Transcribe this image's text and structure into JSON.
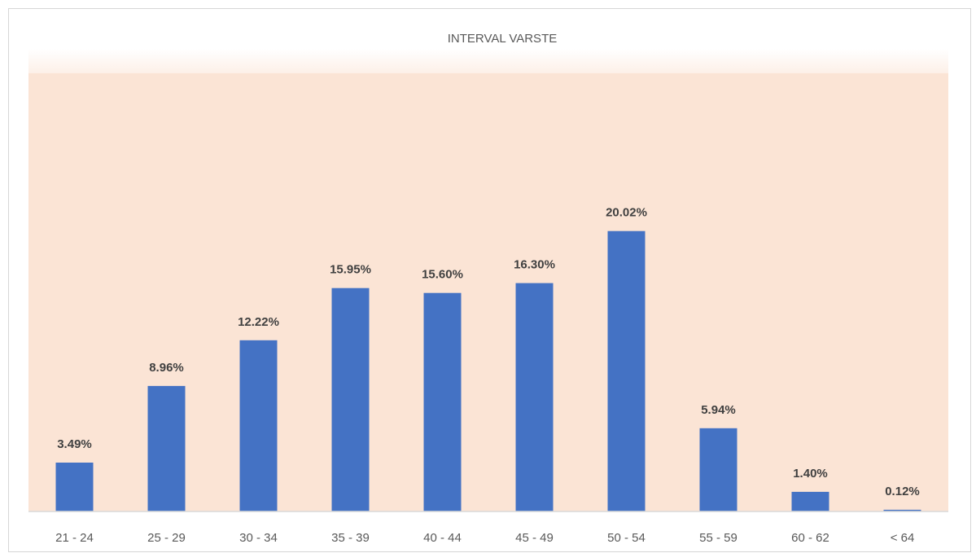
{
  "chart_data": {
    "type": "bar",
    "title": "INTERVAL VARSTE",
    "xlabel": "",
    "ylabel": "",
    "categories": [
      "21 - 24",
      "25 - 29",
      "30 - 34",
      "35 - 39",
      "40 - 44",
      "45 - 49",
      "50 - 54",
      "55 - 59",
      "60 - 62",
      "< 64"
    ],
    "values": [
      3.49,
      8.96,
      12.22,
      15.95,
      15.6,
      16.3,
      20.02,
      5.94,
      1.4,
      0.12
    ],
    "data_labels": [
      "3.49%",
      "8.96%",
      "12.22%",
      "15.95%",
      "15.60%",
      "16.30%",
      "20.02%",
      "5.94%",
      "1.40%",
      "0.12%"
    ],
    "unit": "%",
    "ylim": [
      0,
      25
    ],
    "grid": false,
    "legend": "none",
    "colors": {
      "bar": "#4472C4",
      "plot_background": "#FBE4D5",
      "axis_line": "#D9D9D9",
      "text": "#595959",
      "label": "#404040"
    }
  }
}
